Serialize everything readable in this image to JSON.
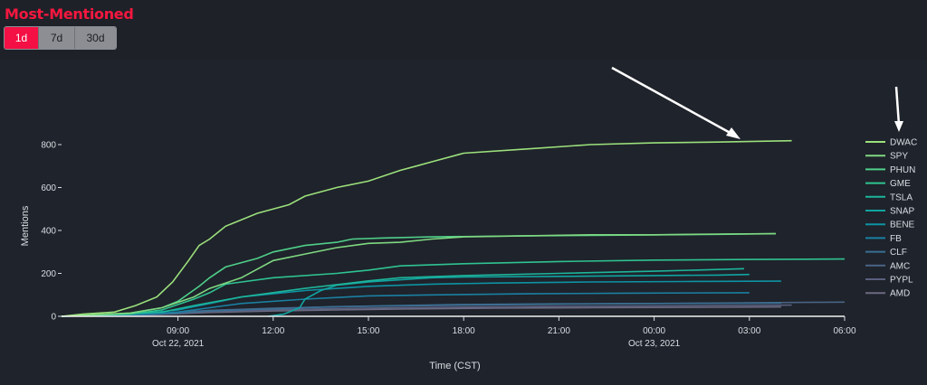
{
  "header": {
    "title": "Most-Mentioned",
    "ranges": [
      {
        "label": "1d",
        "active": true
      },
      {
        "label": "7d",
        "active": false
      },
      {
        "label": "30d",
        "active": false
      }
    ]
  },
  "chart_data": {
    "type": "line",
    "xlabel": "Time (CST)",
    "ylabel": "Mentions",
    "x_range": [
      "2021-10-22T05:20",
      "2021-10-23T06:00"
    ],
    "ylim": [
      0,
      900
    ],
    "y_ticks": [
      0,
      200,
      400,
      600,
      800
    ],
    "x_ticks": [
      {
        "time": "2021-10-22T09:00",
        "label": "09:00",
        "sublabel": "Oct 22, 2021"
      },
      {
        "time": "2021-10-22T12:00",
        "label": "12:00",
        "sublabel": ""
      },
      {
        "time": "2021-10-22T15:00",
        "label": "15:00",
        "sublabel": ""
      },
      {
        "time": "2021-10-22T18:00",
        "label": "18:00",
        "sublabel": ""
      },
      {
        "time": "2021-10-22T21:00",
        "label": "21:00",
        "sublabel": ""
      },
      {
        "time": "2021-10-23T00:00",
        "label": "00:00",
        "sublabel": "Oct 23, 2021"
      },
      {
        "time": "2021-10-23T03:00",
        "label": "03:00",
        "sublabel": ""
      },
      {
        "time": "2021-10-23T06:00",
        "label": "06:00",
        "sublabel": ""
      }
    ],
    "grid": false,
    "legend_position": "right",
    "series": [
      {
        "name": "DWAC",
        "color": "#9be07c",
        "points": [
          [
            "2021-10-22T05:20",
            0
          ],
          [
            "2021-10-22T06:00",
            10
          ],
          [
            "2021-10-22T07:00",
            20
          ],
          [
            "2021-10-22T07:40",
            50
          ],
          [
            "2021-10-22T08:20",
            90
          ],
          [
            "2021-10-22T08:50",
            160
          ],
          [
            "2021-10-22T09:20",
            260
          ],
          [
            "2021-10-22T09:40",
            330
          ],
          [
            "2021-10-22T10:00",
            360
          ],
          [
            "2021-10-22T10:30",
            420
          ],
          [
            "2021-10-22T11:30",
            480
          ],
          [
            "2021-10-22T12:30",
            520
          ],
          [
            "2021-10-22T13:00",
            560
          ],
          [
            "2021-10-22T14:00",
            600
          ],
          [
            "2021-10-22T15:00",
            630
          ],
          [
            "2021-10-22T16:00",
            680
          ],
          [
            "2021-10-22T16:30",
            700
          ],
          [
            "2021-10-22T17:00",
            720
          ],
          [
            "2021-10-22T18:00",
            760
          ],
          [
            "2021-10-22T20:00",
            780
          ],
          [
            "2021-10-22T22:00",
            800
          ],
          [
            "2021-10-23T00:00",
            808
          ],
          [
            "2021-10-23T02:00",
            812
          ],
          [
            "2021-10-23T04:20",
            818
          ]
        ]
      },
      {
        "name": "SPY",
        "color": "#7fd882",
        "points": [
          [
            "2021-10-22T05:20",
            0
          ],
          [
            "2021-10-22T07:30",
            15
          ],
          [
            "2021-10-22T08:30",
            40
          ],
          [
            "2021-10-22T09:30",
            90
          ],
          [
            "2021-10-22T10:00",
            130
          ],
          [
            "2021-10-22T11:00",
            180
          ],
          [
            "2021-10-22T12:00",
            260
          ],
          [
            "2021-10-22T13:00",
            290
          ],
          [
            "2021-10-22T14:00",
            320
          ],
          [
            "2021-10-22T15:00",
            340
          ],
          [
            "2021-10-22T16:00",
            345
          ],
          [
            "2021-10-22T17:00",
            360
          ],
          [
            "2021-10-22T18:00",
            370
          ],
          [
            "2021-10-22T20:00",
            375
          ],
          [
            "2021-10-22T22:00",
            380
          ],
          [
            "2021-10-23T00:00",
            380
          ],
          [
            "2021-10-23T02:00",
            383
          ],
          [
            "2021-10-23T03:50",
            385
          ]
        ]
      },
      {
        "name": "PHUN",
        "color": "#4fcf8a",
        "points": [
          [
            "2021-10-22T05:20",
            0
          ],
          [
            "2021-10-22T07:30",
            15
          ],
          [
            "2021-10-22T08:30",
            40
          ],
          [
            "2021-10-22T09:00",
            70
          ],
          [
            "2021-10-22T09:40",
            140
          ],
          [
            "2021-10-22T10:00",
            180
          ],
          [
            "2021-10-22T10:30",
            230
          ],
          [
            "2021-10-22T11:30",
            270
          ],
          [
            "2021-10-22T12:00",
            300
          ],
          [
            "2021-10-22T13:00",
            330
          ],
          [
            "2021-10-22T14:00",
            345
          ],
          [
            "2021-10-22T14:30",
            360
          ],
          [
            "2021-10-22T15:30",
            365
          ],
          [
            "2021-10-22T17:00",
            370
          ],
          [
            "2021-10-22T20:00",
            375
          ],
          [
            "2021-10-22T23:00",
            378
          ],
          [
            "2021-10-23T02:00",
            382
          ],
          [
            "2021-10-23T03:50",
            385
          ]
        ]
      },
      {
        "name": "GME",
        "color": "#2fc391",
        "points": [
          [
            "2021-10-22T05:20",
            0
          ],
          [
            "2021-10-22T07:30",
            10
          ],
          [
            "2021-10-22T08:30",
            30
          ],
          [
            "2021-10-22T09:30",
            80
          ],
          [
            "2021-10-22T10:00",
            110
          ],
          [
            "2021-10-22T10:30",
            150
          ],
          [
            "2021-10-22T12:00",
            180
          ],
          [
            "2021-10-22T14:00",
            200
          ],
          [
            "2021-10-22T15:00",
            215
          ],
          [
            "2021-10-22T16:00",
            235
          ],
          [
            "2021-10-22T18:00",
            245
          ],
          [
            "2021-10-22T21:00",
            255
          ],
          [
            "2021-10-23T00:00",
            262
          ],
          [
            "2021-10-23T03:00",
            265
          ],
          [
            "2021-10-23T06:00",
            267
          ]
        ]
      },
      {
        "name": "TSLA",
        "color": "#1db59b",
        "points": [
          [
            "2021-10-22T05:20",
            0
          ],
          [
            "2021-10-22T08:30",
            20
          ],
          [
            "2021-10-22T09:30",
            50
          ],
          [
            "2021-10-22T11:00",
            90
          ],
          [
            "2021-10-22T13:00",
            130
          ],
          [
            "2021-10-22T15:00",
            165
          ],
          [
            "2021-10-22T16:00",
            180
          ],
          [
            "2021-10-22T18:00",
            190
          ],
          [
            "2021-10-22T21:00",
            200
          ],
          [
            "2021-10-23T00:00",
            210
          ],
          [
            "2021-10-23T02:00",
            218
          ],
          [
            "2021-10-23T02:50",
            222
          ]
        ]
      },
      {
        "name": "SNAP",
        "color": "#10a5a1",
        "points": [
          [
            "2021-10-22T11:50",
            0
          ],
          [
            "2021-10-22T12:20",
            10
          ],
          [
            "2021-10-22T12:50",
            40
          ],
          [
            "2021-10-22T13:00",
            80
          ],
          [
            "2021-10-22T13:30",
            120
          ],
          [
            "2021-10-22T14:00",
            145
          ],
          [
            "2021-10-22T15:00",
            160
          ],
          [
            "2021-10-22T16:00",
            170
          ],
          [
            "2021-10-22T17:00",
            180
          ],
          [
            "2021-10-22T18:00",
            183
          ],
          [
            "2021-10-22T21:00",
            186
          ],
          [
            "2021-10-23T00:00",
            190
          ],
          [
            "2021-10-23T02:00",
            192
          ],
          [
            "2021-10-23T03:00",
            195
          ]
        ]
      },
      {
        "name": "BENE",
        "color": "#0d93a3",
        "points": [
          [
            "2021-10-22T05:20",
            0
          ],
          [
            "2021-10-22T08:00",
            15
          ],
          [
            "2021-10-22T09:00",
            30
          ],
          [
            "2021-10-22T10:00",
            60
          ],
          [
            "2021-10-22T11:00",
            90
          ],
          [
            "2021-10-22T13:00",
            120
          ],
          [
            "2021-10-22T15:00",
            140
          ],
          [
            "2021-10-22T17:00",
            150
          ],
          [
            "2021-10-22T19:00",
            155
          ],
          [
            "2021-10-22T22:00",
            160
          ],
          [
            "2021-10-23T01:00",
            162
          ],
          [
            "2021-10-23T04:00",
            164
          ]
        ]
      },
      {
        "name": "FB",
        "color": "#1a80a2",
        "points": [
          [
            "2021-10-22T05:20",
            0
          ],
          [
            "2021-10-22T08:00",
            10
          ],
          [
            "2021-10-22T09:00",
            20
          ],
          [
            "2021-10-22T10:00",
            40
          ],
          [
            "2021-10-22T11:00",
            60
          ],
          [
            "2021-10-22T13:00",
            80
          ],
          [
            "2021-10-22T15:00",
            95
          ],
          [
            "2021-10-22T17:00",
            100
          ],
          [
            "2021-10-22T20:00",
            105
          ],
          [
            "2021-10-22T23:00",
            108
          ],
          [
            "2021-10-23T03:00",
            110
          ]
        ]
      },
      {
        "name": "CLF",
        "color": "#3a6f93",
        "points": [
          [
            "2021-10-22T05:20",
            0
          ],
          [
            "2021-10-22T08:00",
            8
          ],
          [
            "2021-10-22T09:00",
            15
          ],
          [
            "2021-10-22T10:00",
            25
          ],
          [
            "2021-10-22T12:00",
            35
          ],
          [
            "2021-10-22T14:00",
            45
          ],
          [
            "2021-10-22T16:00",
            50
          ],
          [
            "2021-10-22T18:00",
            55
          ],
          [
            "2021-10-22T21:00",
            58
          ],
          [
            "2021-10-23T00:00",
            60
          ],
          [
            "2021-10-23T04:00",
            62
          ]
        ]
      },
      {
        "name": "AMC",
        "color": "#4a6484",
        "points": [
          [
            "2021-10-22T05:20",
            0
          ],
          [
            "2021-10-22T08:00",
            10
          ],
          [
            "2021-10-22T09:00",
            20
          ],
          [
            "2021-10-22T10:00",
            28
          ],
          [
            "2021-10-22T12:00",
            38
          ],
          [
            "2021-10-22T14:00",
            45
          ],
          [
            "2021-10-22T17:00",
            50
          ],
          [
            "2021-10-22T20:00",
            55
          ],
          [
            "2021-10-23T00:00",
            60
          ],
          [
            "2021-10-23T03:00",
            63
          ],
          [
            "2021-10-23T06:00",
            66
          ]
        ]
      },
      {
        "name": "PYPL",
        "color": "#5a6080",
        "points": [
          [
            "2021-10-22T05:20",
            0
          ],
          [
            "2021-10-22T08:00",
            8
          ],
          [
            "2021-10-22T09:00",
            15
          ],
          [
            "2021-10-22T10:00",
            22
          ],
          [
            "2021-10-22T12:00",
            30
          ],
          [
            "2021-10-22T14:00",
            36
          ],
          [
            "2021-10-22T16:00",
            40
          ],
          [
            "2021-10-22T19:00",
            44
          ],
          [
            "2021-10-22T22:00",
            47
          ],
          [
            "2021-10-23T02:00",
            50
          ],
          [
            "2021-10-23T04:20",
            52
          ]
        ]
      },
      {
        "name": "AMD",
        "color": "#6b6a80",
        "points": [
          [
            "2021-10-22T05:20",
            0
          ],
          [
            "2021-10-22T08:00",
            6
          ],
          [
            "2021-10-22T09:00",
            12
          ],
          [
            "2021-10-22T10:00",
            18
          ],
          [
            "2021-10-22T12:00",
            25
          ],
          [
            "2021-10-22T14:00",
            30
          ],
          [
            "2021-10-22T16:00",
            34
          ],
          [
            "2021-10-22T19:00",
            38
          ],
          [
            "2021-10-22T22:00",
            40
          ],
          [
            "2021-10-23T02:00",
            42
          ],
          [
            "2021-10-23T04:00",
            44
          ]
        ]
      }
    ]
  }
}
